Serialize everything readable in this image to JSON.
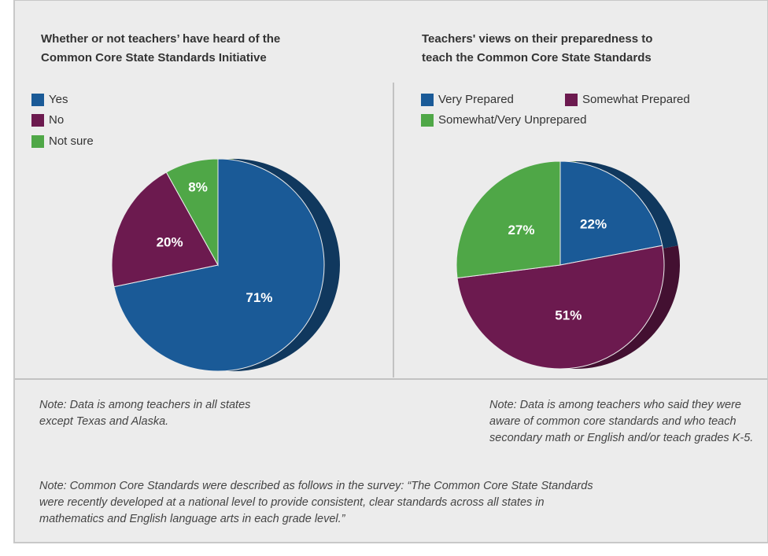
{
  "chart_data": [
    {
      "type": "pie",
      "title": [
        "Whether or not teachers’ have heard of the",
        "Common Core State Standards Initiative"
      ],
      "categories": [
        "Yes",
        "No",
        "Not sure"
      ],
      "values": [
        71,
        20,
        8
      ],
      "value_labels": [
        "71%",
        "20%",
        "8%"
      ],
      "colors": [
        "#1a5a97",
        "#6c1a4f",
        "#4fa747"
      ],
      "note": [
        "Note: Data is among teachers in all states",
        "except Texas and Alaska."
      ]
    },
    {
      "type": "pie",
      "title": [
        "Teachers' views on their preparedness to",
        "teach the Common Core State Standards"
      ],
      "categories": [
        "Very Prepared",
        "Somewhat Prepared",
        "Somewhat/Very Unprepared"
      ],
      "values": [
        22,
        51,
        27
      ],
      "value_labels": [
        "22%",
        "51%",
        "27%"
      ],
      "colors": [
        "#1a5a97",
        "#6c1a4f",
        "#4fa747"
      ],
      "note": [
        "Note: Data is among teachers who said they were",
        "aware of common core standards and who teach",
        "secondary math or English and/or teach grades K-5."
      ]
    }
  ],
  "note": [
    "Note: Common Core Standards were described as follows in the survey: “The Common Core State Standards",
    "were recently developed at a national level to provide consistent, clear standards across all states in",
    "mathematics and English language arts in each grade level.”"
  ]
}
